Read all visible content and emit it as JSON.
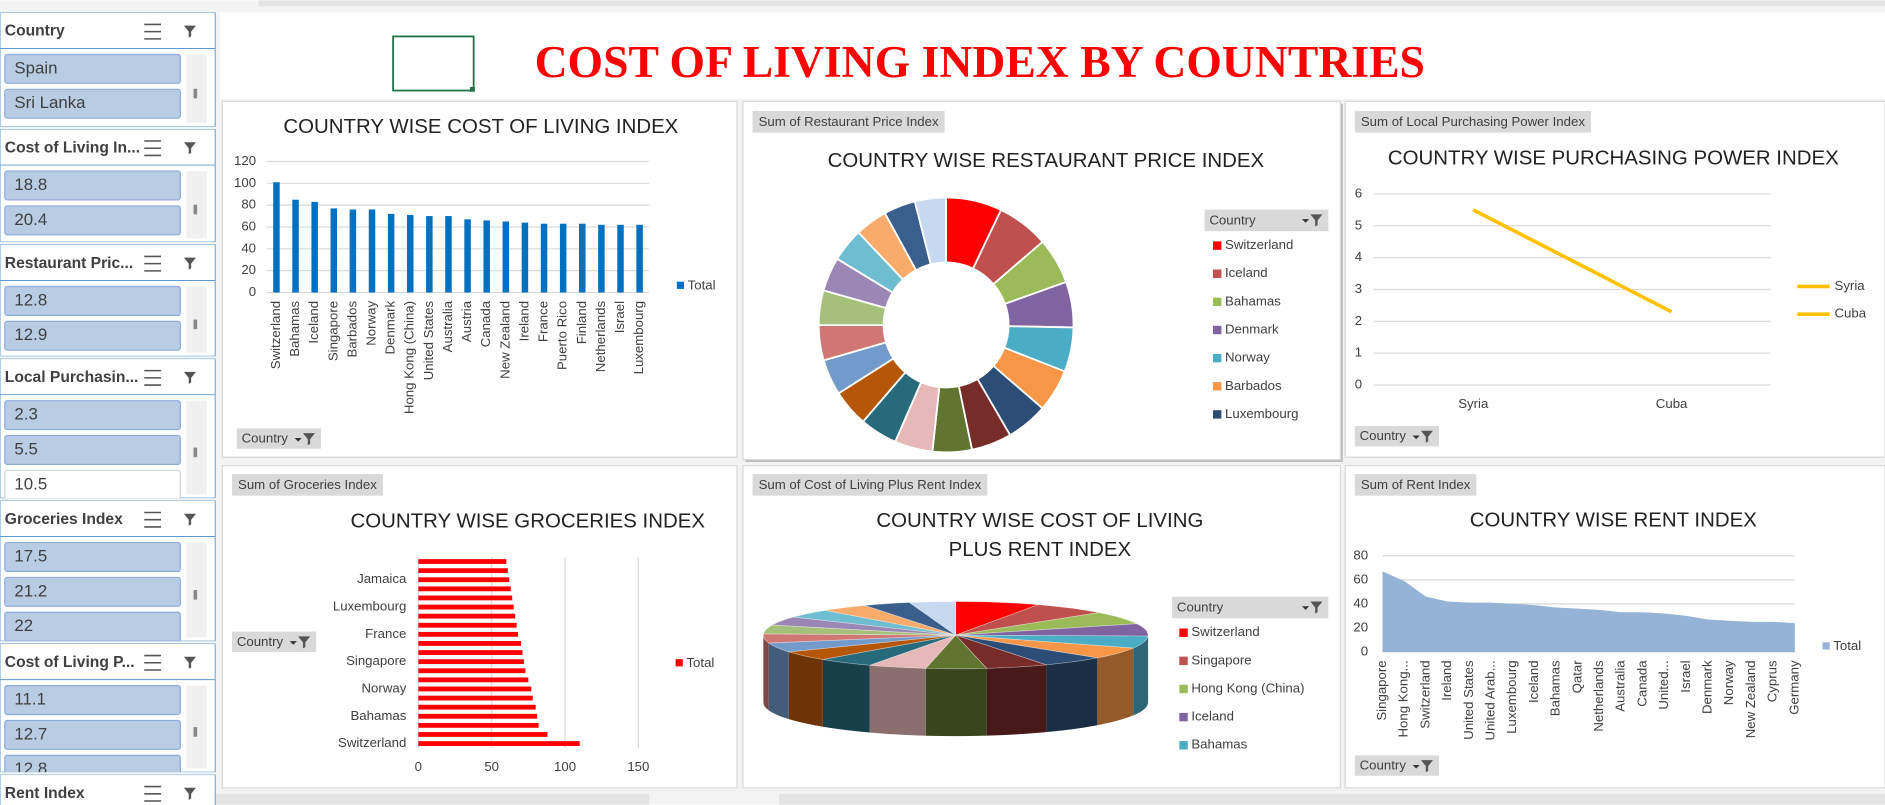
{
  "page_title": "COST OF LIVING INDEX BY COUNTRIES",
  "slicers": [
    {
      "title": "Country",
      "items": [
        "Spain",
        "Sri Lanka"
      ]
    },
    {
      "title": "Cost of Living In...",
      "items": [
        "18.8",
        "20.4"
      ]
    },
    {
      "title": "Restaurant Pric...",
      "items": [
        "12.8",
        "12.9"
      ]
    },
    {
      "title": "Local Purchasin...",
      "items": [
        "2.3",
        "5.5",
        "10.5"
      ]
    },
    {
      "title": "Groceries Index",
      "items": [
        "17.5",
        "21.2",
        "22"
      ]
    },
    {
      "title": "Cost of Living P...",
      "items": [
        "11.1",
        "12.7",
        "12.8"
      ]
    },
    {
      "title": "Rent Index",
      "items": []
    }
  ],
  "chart_data": [
    {
      "type": "bar",
      "title": "COUNTRY WISE COST OF LIVING INDEX",
      "categories": [
        "Switzerland",
        "Bahamas",
        "Iceland",
        "Singapore",
        "Barbados",
        "Norway",
        "Denmark",
        "Hong Kong (China)",
        "United States",
        "Australia",
        "Austria",
        "Canada",
        "New Zealand",
        "Ireland",
        "France",
        "Puerto Rico",
        "Finland",
        "Netherlands",
        "Israel",
        "Luxembourg"
      ],
      "series": [
        {
          "name": "Total",
          "color": "#0070c0",
          "values": [
            101,
            85,
            83,
            77,
            76,
            76,
            72,
            71,
            70,
            70,
            67,
            66,
            65,
            64,
            63,
            63,
            63,
            62,
            62,
            62
          ]
        }
      ],
      "ylim": [
        0,
        120
      ],
      "yticks": [
        0,
        20,
        40,
        60,
        80,
        100,
        120
      ],
      "grid": true,
      "filter": "Country"
    },
    {
      "type": "donut",
      "title": "COUNTRY WISE RESTAURANT PRICE INDEX",
      "field": "Sum of Restaurant Price Index",
      "legend_title": "Country",
      "categories": [
        "Switzerland",
        "Iceland",
        "Bahamas",
        "Denmark",
        "Norway",
        "Barbados",
        "Luxembourg",
        null,
        null,
        null,
        null,
        null,
        null,
        null,
        null,
        null,
        null,
        null,
        null,
        null
      ],
      "values": [
        97,
        90,
        80,
        79,
        77,
        74,
        72,
        70,
        68,
        66,
        65,
        64,
        62,
        61,
        60,
        59,
        58,
        56,
        55,
        54
      ],
      "colors": [
        "#ff0000",
        "#c0504d",
        "#9bbb59",
        "#8064a2",
        "#4bacc6",
        "#f79646",
        "#2c4d75",
        "#772c2a",
        "#5f7530",
        "#e6b9b8",
        "#276a7c",
        "#b65708",
        "#729aca",
        "#d07673",
        "#a5c07a",
        "#9b87b5",
        "#6fbdd1",
        "#f9ab6b",
        "#3a5f8c",
        "#c6d9f1"
      ]
    },
    {
      "type": "line",
      "title": "COUNTRY WISE PURCHASING POWER INDEX",
      "field": "Sum of Local Purchasing Power Index",
      "categories": [
        "Syria",
        "Cuba"
      ],
      "series": [
        {
          "color": "#ffc000",
          "values": [
            5.5,
            2.3
          ]
        }
      ],
      "legend": [
        "Syria",
        "Cuba"
      ],
      "ylim": [
        0,
        6
      ],
      "yticks": [
        0,
        1,
        2,
        3,
        4,
        5,
        6
      ],
      "grid": true,
      "filter": "Country"
    },
    {
      "type": "hbar",
      "title": "COUNTRY WISE GROCERIES INDEX",
      "field": "Sum of Groceries Index",
      "categories": [
        "Switzerland",
        null,
        null,
        "Bahamas",
        null,
        null,
        "Norway",
        null,
        null,
        "Singapore",
        null,
        null,
        "France",
        null,
        null,
        "Luxembourg",
        null,
        null,
        "Jamaica",
        null,
        null
      ],
      "series": [
        {
          "name": "Total",
          "color": "#ff0000",
          "values": [
            110,
            88,
            82,
            81,
            80,
            78,
            77,
            75,
            73,
            72,
            71,
            70,
            68,
            67,
            66,
            65,
            64,
            63,
            62,
            61,
            60
          ]
        }
      ],
      "xlim": [
        0,
        150
      ],
      "xticks": [
        0,
        50,
        100,
        150
      ],
      "grid": true,
      "filter": "Country"
    },
    {
      "type": "pie3d",
      "title": "COUNTRY WISE COST OF LIVING PLUS RENT INDEX",
      "field": "Sum of Cost of Living Plus Rent Index",
      "legend_title": "Country",
      "categories": [
        "Switzerland",
        "Singapore",
        "Hong Kong (China)",
        "Iceland",
        "Bahamas",
        null,
        null,
        null,
        null,
        null,
        null,
        null,
        null,
        null,
        null,
        null,
        null,
        null,
        null,
        null
      ],
      "values": [
        89,
        80,
        78,
        75,
        74,
        70,
        68,
        66,
        64,
        62,
        60,
        58,
        57,
        55,
        54,
        53,
        52,
        51,
        50,
        49
      ],
      "colors": [
        "#ff0000",
        "#c0504d",
        "#9bbb59",
        "#8064a2",
        "#4bacc6",
        "#f79646",
        "#2c4d75",
        "#772c2a",
        "#5f7530",
        "#e6b9b8",
        "#276a7c",
        "#b65708",
        "#729aca",
        "#d07673",
        "#a5c07a",
        "#9b87b5",
        "#6fbdd1",
        "#f9ab6b",
        "#3a5f8c",
        "#c6d9f1"
      ]
    },
    {
      "type": "area",
      "title": "COUNTRY WISE RENT INDEX",
      "field": "Sum of Rent Index",
      "categories": [
        "Singapore",
        "Hong Kong...",
        "Switzerland",
        "Ireland",
        "United States",
        "United Arab...",
        "Luxembourg",
        "Iceland",
        "Bahamas",
        "Qatar",
        "Netherlands",
        "Australia",
        "Canada",
        "United...",
        "Israel",
        "Denmark",
        "Norway",
        "New Zealand",
        "Cyprus",
        "Germany"
      ],
      "series": [
        {
          "name": "Total",
          "color": "#95b3d7",
          "values": [
            67,
            59,
            46,
            42,
            41,
            41,
            40,
            39,
            37,
            36,
            35,
            33,
            33,
            32,
            30,
            27,
            26,
            25,
            25,
            24
          ]
        }
      ],
      "ylim": [
        0,
        80
      ],
      "yticks": [
        0,
        20,
        40,
        60,
        80
      ],
      "grid": true,
      "filter": "Country"
    }
  ]
}
